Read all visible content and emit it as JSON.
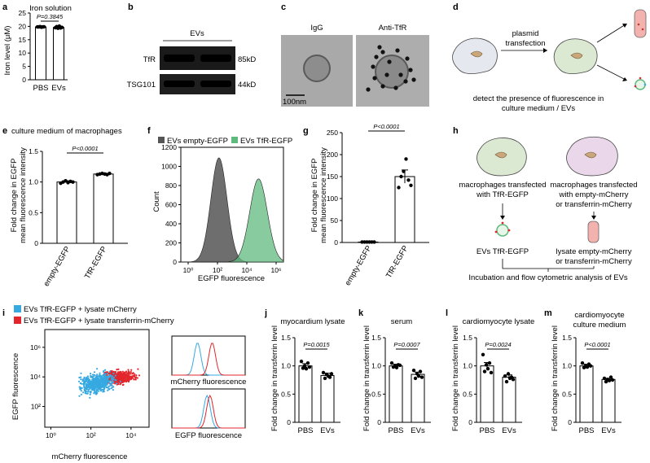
{
  "panels": {
    "a": {
      "letter": "a",
      "title": "Iron solution",
      "ylabel": "Iron level (μM)",
      "pvalue": "P=0.3845"
    },
    "b": {
      "letter": "b",
      "header": "EVs",
      "rows": [
        {
          "name": "TfR",
          "size": "85kD"
        },
        {
          "name": "TSG101",
          "size": "44kD"
        }
      ]
    },
    "c": {
      "letter": "c",
      "left": "IgG",
      "right": "Anti-TfR",
      "scale": "100nm"
    },
    "d": {
      "letter": "d",
      "arrow_label_1": "plasmid",
      "arrow_label_2": "transfection",
      "caption_1": "detect the presence of fluorescence in",
      "caption_2": "culture medium / EVs"
    },
    "e": {
      "letter": "e",
      "title": "culture medium of macrophages",
      "ylabel_1": "Fold change in EGFP",
      "ylabel_2": "mean fluorescence intensity",
      "pvalue": "P<0.0001"
    },
    "f": {
      "letter": "f",
      "legend_1": "EVs empty-EGFP",
      "legend_2": "EVs TfR-EGFP",
      "ylabel": "Count",
      "xlabel": "EGFP fluorescence"
    },
    "g": {
      "letter": "g",
      "ylabel_1": "Fold change in EGFP",
      "ylabel_2": "mean fluorescence intensity",
      "pvalue": "P<0.0001"
    },
    "h": {
      "letter": "h",
      "left_1": "macrophages transfected",
      "left_2": "with TfR-EGFP",
      "right_1": "macrophages transfected",
      "right_2": "with empty-mCherry",
      "right_3": "or transferrin-mCherry",
      "ev_label": "EVs TfR-EGFP",
      "lysate_1": "lysate empty-mCherry",
      "lysate_2": "or transferrin-mCherry",
      "bottom": "Incubation and flow cytometric analysis of EVs"
    },
    "i": {
      "letter": "i",
      "legend_1": "EVs TfR-EGFP + lysate mCherry",
      "legend_2": "EVs TfR-EGFP + lysate transferrin-mCherry",
      "ylabel": "EGFP fluorescence",
      "xlabel": "mCherry fluorescence",
      "hist1_label": "mCherry fluorescence",
      "hist2_label": "EGFP fluorescence"
    },
    "j": {
      "letter": "j",
      "title": "myocardium lysate",
      "pvalue": "P=0.0015"
    },
    "k": {
      "letter": "k",
      "title": "serum",
      "pvalue": "P=0.0007"
    },
    "l": {
      "letter": "l",
      "title": "cardiomyocyte lysate",
      "pvalue": "P=0.0024"
    },
    "m": {
      "letter": "m",
      "title_1": "cardiomyocyte",
      "title_2": "culture medium",
      "pvalue": "P<0.0001"
    },
    "transferrin_ylabel": "Fold change in transferrin level"
  },
  "colors": {
    "ev_empty": "#555555",
    "ev_tfr": "#5fba7d",
    "blue": "#36a9e1",
    "red": "#e3262d",
    "cell": "#d9e3d4",
    "lysate": "#f4a8a5"
  },
  "chart_data": [
    {
      "id": "a",
      "type": "bar",
      "categories": [
        "PBS",
        "EVs"
      ],
      "values": [
        19.8,
        19.6
      ],
      "errors": [
        0.15,
        0.5
      ],
      "points": [
        [
          19.8,
          19.8,
          19.9,
          19.7,
          19.8,
          19.85
        ],
        [
          19.5,
          19.9,
          19.3,
          20.1,
          19.4,
          19.6
        ]
      ],
      "yticks": [
        0,
        5,
        10,
        15,
        20,
        25
      ],
      "ylim": [
        0,
        25
      ],
      "tick_labels": [
        "0",
        "5",
        "10",
        "15",
        "20",
        "25"
      ]
    },
    {
      "id": "e",
      "type": "bar",
      "categories": [
        "empty-EGFP",
        "TfR-EGFP"
      ],
      "values": [
        1.0,
        1.13
      ],
      "errors": [
        0.02,
        0.015
      ],
      "points": [
        [
          0.98,
          1.0,
          1.02,
          0.99,
          1.01,
          1.0
        ],
        [
          1.12,
          1.13,
          1.14,
          1.13,
          1.12,
          1.14
        ]
      ],
      "yticks": [
        0,
        0.5,
        1.0,
        1.5
      ],
      "ylim": [
        0,
        1.5
      ],
      "tick_labels": [
        "0",
        "0.5",
        "1.0",
        "1.5"
      ]
    },
    {
      "id": "g",
      "type": "bar",
      "categories": [
        "empty-EGFP",
        "TfR-EGFP"
      ],
      "values": [
        1,
        150
      ],
      "errors": [
        0.2,
        15
      ],
      "points": [
        [
          1,
          1,
          1,
          1,
          1,
          1
        ],
        [
          125,
          150,
          162,
          190,
          142,
          130
        ]
      ],
      "yticks": [
        0,
        50,
        100,
        150,
        200,
        250
      ],
      "ylim": [
        0,
        250
      ],
      "tick_labels": [
        "0",
        "50",
        "100",
        "150",
        "200",
        "250"
      ]
    },
    {
      "id": "j",
      "type": "bar",
      "categories": [
        "PBS",
        "EVs"
      ],
      "values": [
        1.0,
        0.83
      ],
      "errors": [
        0.04,
        0.04
      ],
      "points": [
        [
          1.08,
          0.96,
          1.0,
          0.95,
          1.05,
          0.98
        ],
        [
          0.88,
          0.78,
          0.85,
          0.82,
          0.8,
          0.86
        ]
      ],
      "yticks": [
        0,
        0.5,
        1.0,
        1.5
      ],
      "ylim": [
        0,
        1.5
      ],
      "tick_labels": [
        "0",
        "0.5",
        "1.0",
        "1.5"
      ]
    },
    {
      "id": "k",
      "type": "bar",
      "categories": [
        "PBS",
        "EVs"
      ],
      "values": [
        1.0,
        0.85
      ],
      "errors": [
        0.03,
        0.04
      ],
      "points": [
        [
          1.05,
          0.98,
          1.0,
          0.97,
          1.02,
          1.01
        ],
        [
          0.92,
          0.78,
          0.86,
          0.82,
          0.9,
          0.8
        ]
      ],
      "yticks": [
        0,
        0.5,
        1.0,
        1.5
      ],
      "ylim": [
        0,
        1.5
      ],
      "tick_labels": [
        "0",
        "0.5",
        "1.0",
        "1.5"
      ]
    },
    {
      "id": "l",
      "type": "bar",
      "categories": [
        "PBS",
        "EVs"
      ],
      "values": [
        1.0,
        0.8
      ],
      "errors": [
        0.06,
        0.04
      ],
      "points": [
        [
          1.2,
          0.9,
          1.02,
          0.95,
          1.05,
          0.88
        ],
        [
          0.82,
          0.72,
          0.86,
          0.78,
          0.8,
          0.76
        ]
      ],
      "yticks": [
        0,
        0.5,
        1.0,
        1.5
      ],
      "ylim": [
        0,
        1.5
      ],
      "tick_labels": [
        "0",
        "0.5",
        "1.0",
        "1.5"
      ]
    },
    {
      "id": "m",
      "type": "bar",
      "categories": [
        "PBS",
        "EVs"
      ],
      "values": [
        1.0,
        0.76
      ],
      "errors": [
        0.03,
        0.02
      ],
      "points": [
        [
          1.05,
          0.97,
          1.0,
          0.98,
          1.03,
          1.0
        ],
        [
          0.78,
          0.72,
          0.76,
          0.74,
          0.8,
          0.75
        ]
      ],
      "yticks": [
        0,
        0.5,
        1.0,
        1.5
      ],
      "ylim": [
        0,
        1.5
      ],
      "tick_labels": [
        "0",
        "0.5",
        "1.0",
        "1.5"
      ]
    },
    {
      "id": "f",
      "type": "area",
      "xlabel": "EGFP fluorescence",
      "ylabel": "Count",
      "yticks": [
        0,
        200,
        400,
        600,
        800,
        1000,
        1200
      ],
      "tick_labels": [
        "0",
        "200",
        "400",
        "600",
        "800",
        "1000",
        "1200"
      ],
      "xtick_labels": [
        "10⁰",
        "10²",
        "10⁴",
        "10⁶"
      ],
      "ylim": [
        0,
        1200
      ],
      "xlim_log10": [
        -0.5,
        6.5
      ],
      "series": [
        {
          "name": "EVs empty-EGFP",
          "peak_log10": 2.1,
          "peak_count": 1090
        },
        {
          "name": "EVs TfR-EGFP",
          "peak_log10": 4.8,
          "peak_count": 870
        }
      ]
    },
    {
      "id": "i",
      "type": "scatter",
      "xlabel": "mCherry fluorescence",
      "ylabel": "EGFP fluorescence",
      "xtick_labels": [
        "10⁰",
        "10²",
        "10⁴"
      ],
      "ytick_labels": [
        "10²",
        "10⁴",
        "10⁶"
      ],
      "series": [
        {
          "name": "EVs TfR-EGFP + lysate mCherry",
          "center_log10": [
            2.3,
            3.6
          ]
        },
        {
          "name": "EVs TfR-EGFP + lysate transferrin-mCherry",
          "center_log10": [
            3.4,
            4.0
          ]
        }
      ]
    }
  ]
}
